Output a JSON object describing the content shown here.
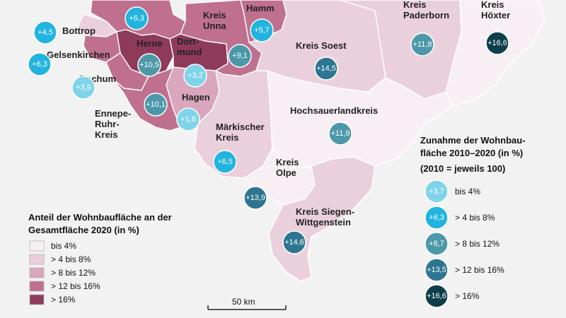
{
  "colors": {
    "background": "#f2f2f2",
    "border": "#ffffff",
    "area_le4": "#f7eff3",
    "area_4_8": "#ead0dc",
    "area_8_12": "#d9a6bd",
    "area_12_16": "#c0708f",
    "area_gt16": "#8e3a59",
    "bubble_le4": "#7fd4ea",
    "bubble_4_8": "#22b4de",
    "bubble_8_12": "#4c98a8",
    "bubble_12_16": "#2d7590",
    "bubble_gt16": "#0d3f4a",
    "bubble_outline": "#ffffff"
  },
  "regions": [
    {
      "id": "bottrop",
      "label": "Bottrop",
      "growth": "+4,5",
      "share_class": "4-8"
    },
    {
      "id": "gelsenkirchen",
      "label": "Gelsenkirchen",
      "growth": "+6,3",
      "share_class": "12-16"
    },
    {
      "id": "bochum",
      "label": "Bochum",
      "growth": "+3,9",
      "share_class": "12-16"
    },
    {
      "id": "herne",
      "label": "Herne",
      "growth": "+10,5",
      "share_class": ">16"
    },
    {
      "id": "dortmund",
      "label": "Dort-\nmund",
      "growth": "+3,2",
      "share_class": ">16"
    },
    {
      "id": "hagen",
      "label": "Hagen",
      "growth": "+1,8",
      "share_class": "8-12"
    },
    {
      "id": "ennepe",
      "label": "Ennepe-\nRuhr-\nKreis",
      "growth": "+10,1",
      "share_class": "12-16"
    },
    {
      "id": "recklinghausen",
      "label": "",
      "growth": "+6,3",
      "share_class": "12-16"
    },
    {
      "id": "unna",
      "label": "Kreis\nUnna",
      "growth": "+9,1",
      "share_class": "12-16"
    },
    {
      "id": "hamm",
      "label": "Hamm",
      "growth": "+5,7",
      "share_class": "12-16"
    },
    {
      "id": "soest",
      "label": "Kreis Soest",
      "growth": "+14,5",
      "share_class": "4-8"
    },
    {
      "id": "paderborn",
      "label": "Kreis\nPaderborn",
      "growth": "+11,8",
      "share_class": "4-8"
    },
    {
      "id": "hoexter",
      "label": "Kreis\nHöxter",
      "growth": "+16,6",
      "share_class": "<=4"
    },
    {
      "id": "maerkisch",
      "label": "Märkischer\nKreis",
      "growth": "+6,5",
      "share_class": "4-8"
    },
    {
      "id": "hochsauerland",
      "label": "Hochsauerlandkreis",
      "growth": "+11,9",
      "share_class": "<=4"
    },
    {
      "id": "olpe",
      "label": "Kreis\nOlpe",
      "growth": "+13,9",
      "share_class": "<=4"
    },
    {
      "id": "siegen",
      "label": "Kreis Siegen-\nWittgenstein",
      "growth": "+14,6",
      "share_class": "4-8"
    }
  ],
  "legend_share": {
    "title_line1": "Anteil der Wohnbaufläche an der",
    "title_line2": "Gesamtfläche 2020 (in %)",
    "items": [
      {
        "label": "bis 4%",
        "class": "<=4"
      },
      {
        "label": "> 4 bis 8%",
        "class": "4-8"
      },
      {
        "label": "> 8 bis 12%",
        "class": "8-12"
      },
      {
        "label": "> 12 bis 16%",
        "class": "12-16"
      },
      {
        "label": "> 16%",
        "class": ">16"
      }
    ]
  },
  "legend_growth": {
    "title_line1": "Zunahme der Wohnbau-",
    "title_line2": "fläche 2010–2020 (in %)",
    "title_line3": "(2010 = jeweils 100)",
    "items": [
      {
        "value": "+3,7",
        "label": "bis 4%",
        "class": "<=4"
      },
      {
        "value": "+6,3",
        "label": "> 4 bis 8%",
        "class": "4-8"
      },
      {
        "value": "+8,7",
        "label": "> 8 bis 12%",
        "class": "8-12"
      },
      {
        "value": "+13,5",
        "label": "> 12 bis 16%",
        "class": "12-16"
      },
      {
        "value": "+16,6",
        "label": "> 16%",
        "class": ">16"
      }
    ]
  },
  "scale": {
    "label": "50 km"
  }
}
